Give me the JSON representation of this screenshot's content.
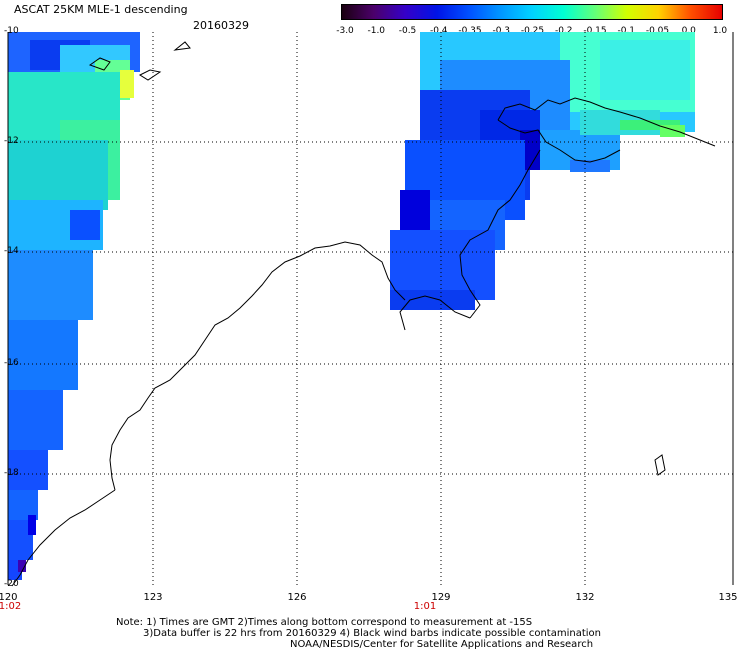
{
  "header": {
    "title": "ASCAT 25KM MLE-1 descending",
    "date": "20160329"
  },
  "colorbar": {
    "labels": [
      "-3.0",
      "-1.0",
      "-0.5",
      "-0.4",
      "-0.35",
      "-0.3",
      "-0.25",
      "-0.2",
      "-0.15",
      "-0.1",
      "-0.05",
      "0.0",
      "1.0"
    ],
    "colors": [
      "#1a0010",
      "#4b006a",
      "#3500c8",
      "#0014e6",
      "#0050ff",
      "#0096ff",
      "#00d2ff",
      "#00ffd2",
      "#64ff78",
      "#d2ff00",
      "#ffd200",
      "#ff5000",
      "#e60000"
    ]
  },
  "map": {
    "lat_labels": [
      "-10",
      "-12",
      "-14",
      "-16",
      "-18",
      "-20"
    ],
    "lon_labels": [
      "120",
      "123",
      "126",
      "129",
      "132",
      "135"
    ],
    "time_labels": [
      "1:02",
      "1:01"
    ]
  },
  "notes": {
    "line1": "Note: 1) Times are GMT 2)Times along bottom correspond to measurement at -15S",
    "line2": "3)Data buffer is 22 hrs from 20160329 4) Black wind barbs indicate possible contamination",
    "line3": "NOAA/NESDIS/Center for Satellite Applications and Research"
  }
}
